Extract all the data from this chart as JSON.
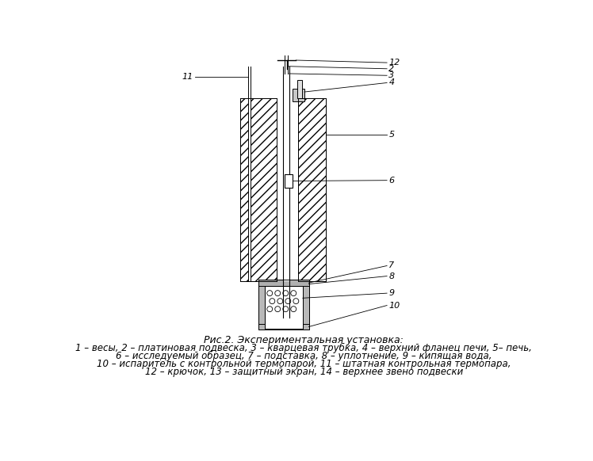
{
  "title": "Рис.2. Экспериментальная установка:",
  "caption_line1": "1 – весы, 2 – платиновая подвеска, 3 – кварцевая трубка, 4 – верхний фланец печи, 5– печь,",
  "caption_line2": "6 – исследуемый образец, 7 – подставка, 8 – уплотнение, 9 – кипящая вода,",
  "caption_line3": "10 – испаритель с контрольной термопарой, 11 – штатная контрольная термопара,",
  "caption_line4": "12 – крючок, 13 – защитный экран, 14 – верхнее звено подвески",
  "bg_color": "#ffffff",
  "line_color": "#000000"
}
